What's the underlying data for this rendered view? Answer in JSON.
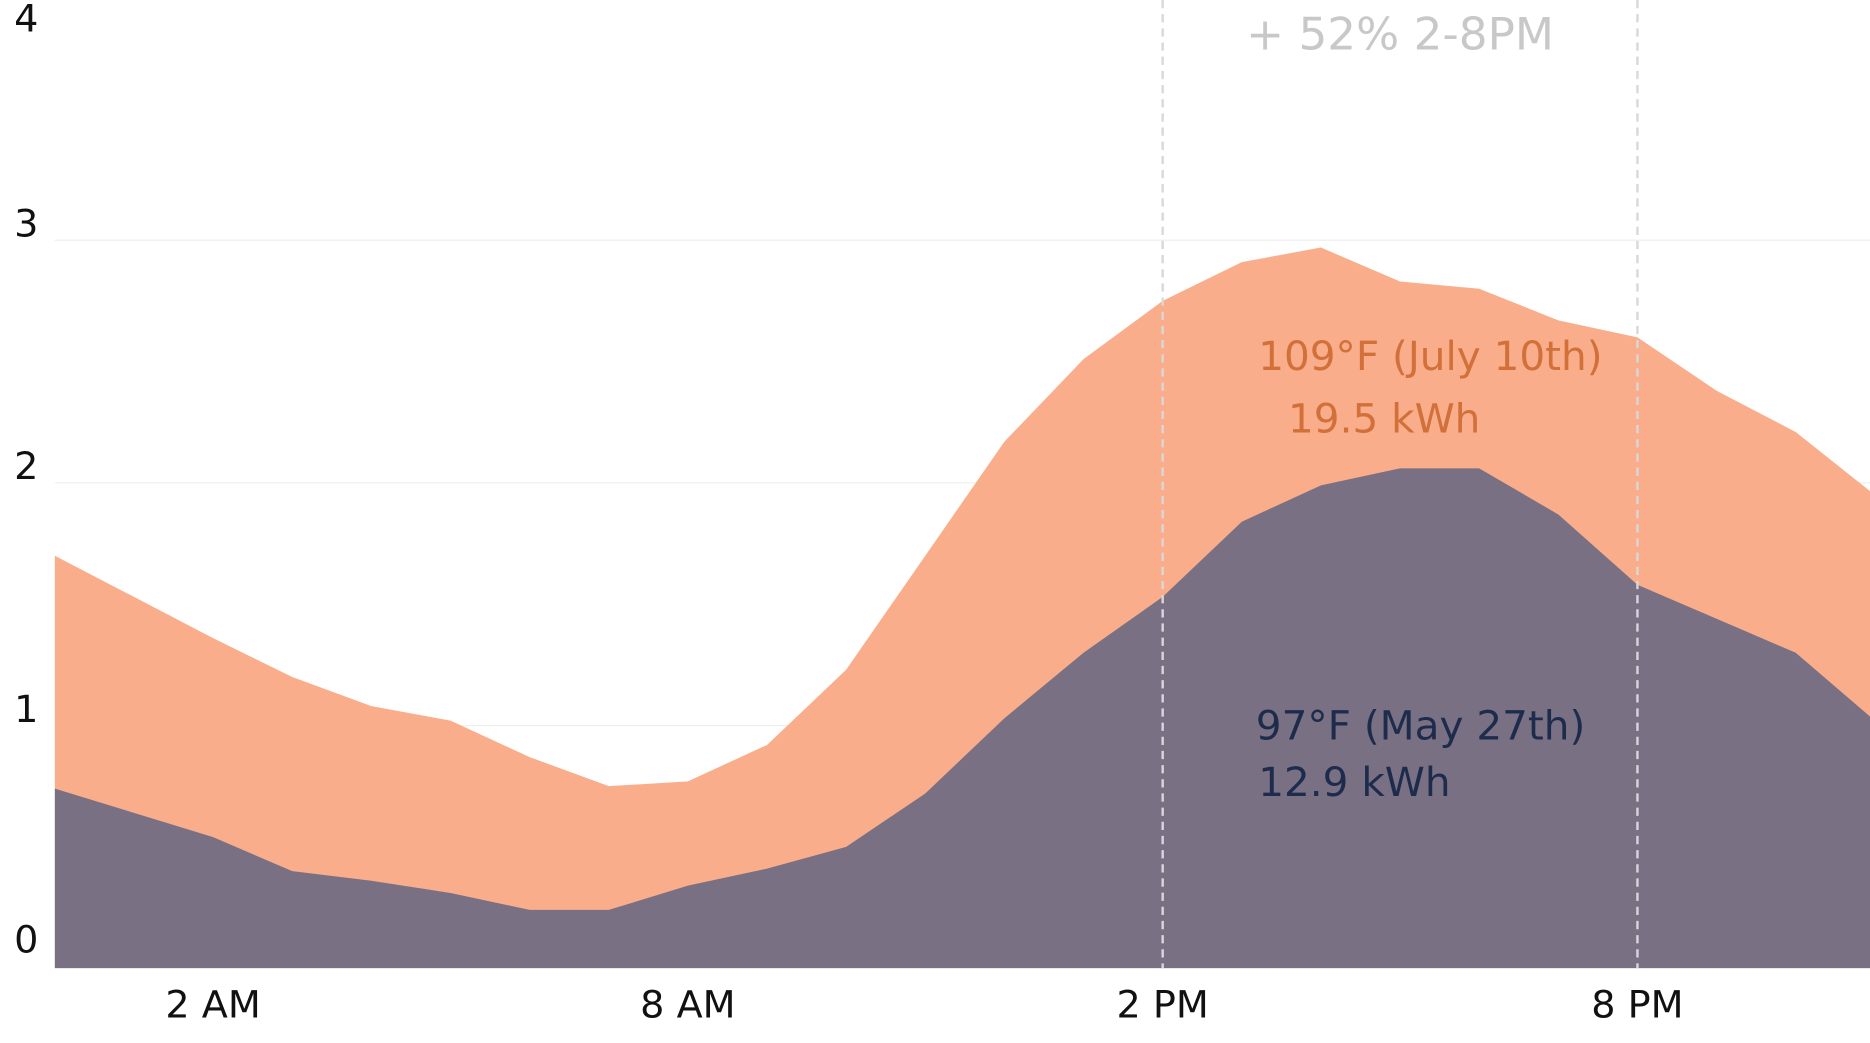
{
  "chart_data": {
    "type": "area",
    "categories": [
      null,
      null,
      "2 AM",
      null,
      null,
      null,
      null,
      null,
      "8 AM",
      null,
      null,
      null,
      null,
      null,
      "2 PM",
      null,
      null,
      null,
      null,
      null,
      "8 PM",
      null,
      null,
      null
    ],
    "series": [
      {
        "name": "109°F (July 10th)",
        "total_label": "19.5 kWh",
        "color": "#f9ad8a",
        "label_color": "#d2703a",
        "values": [
          1.7,
          1.53,
          1.36,
          1.2,
          1.08,
          1.02,
          0.87,
          0.75,
          0.77,
          0.92,
          1.23,
          1.7,
          2.17,
          2.51,
          2.75,
          2.91,
          2.97,
          2.83,
          2.8,
          2.67,
          2.6,
          2.38,
          2.21,
          1.95
        ]
      },
      {
        "name": "97°F (May 27th)",
        "total_label": "12.9 kWh",
        "color": "#7a7083",
        "label_color": "#1d2c4c",
        "values": [
          0.74,
          0.64,
          0.54,
          0.4,
          0.36,
          0.31,
          0.24,
          0.24,
          0.34,
          0.41,
          0.5,
          0.72,
          1.03,
          1.3,
          1.53,
          1.84,
          1.99,
          2.06,
          2.06,
          1.87,
          1.58,
          1.44,
          1.3,
          1.02
        ]
      }
    ],
    "ylim": [
      0,
      4
    ],
    "yticks": [
      0,
      1,
      2,
      3,
      4
    ],
    "grid": true,
    "highlight": {
      "from": 14,
      "to": 20,
      "label": "+ 52% 2-8PM"
    }
  }
}
